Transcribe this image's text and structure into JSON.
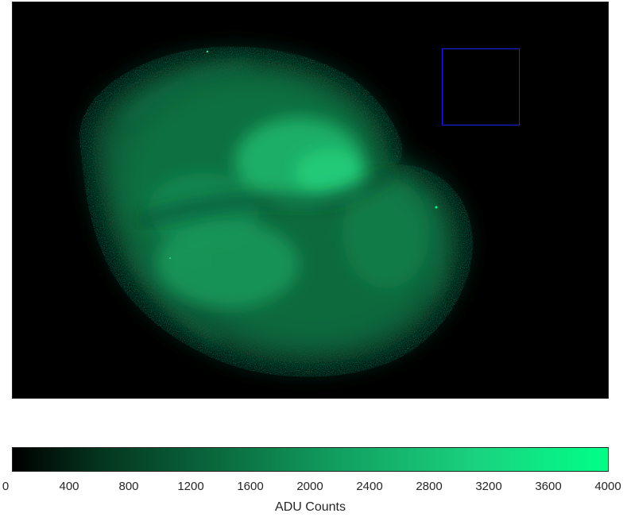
{
  "colorbar": {
    "label": "ADU Counts",
    "ticks": [
      "0",
      "400",
      "800",
      "1200",
      "1600",
      "2000",
      "2400",
      "2800",
      "3200",
      "3600",
      "4000"
    ],
    "range": [
      0,
      4000
    ],
    "colors": {
      "low": "#000000",
      "high": "#00ff88"
    }
  },
  "image": {
    "colormap_accent": "#00ff88",
    "selection_box_color": "#1a1aff"
  }
}
